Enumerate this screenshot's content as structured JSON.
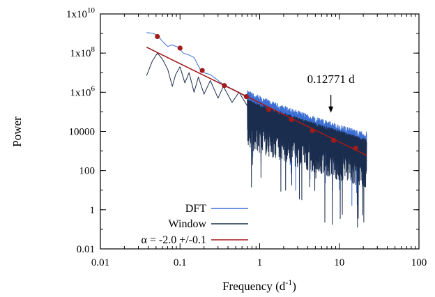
{
  "chart_data": {
    "type": "line",
    "xlabel": "Frequency (d",
    "xlabel_sup": "-1",
    "xlabel_close": ")",
    "ylabel": "Power",
    "x_scale": "log",
    "y_scale": "log",
    "xlim": [
      0.01,
      100
    ],
    "ylim": [
      0.01,
      10000000000
    ],
    "x_ticks": [
      {
        "value": 0.01,
        "label": "0.01"
      },
      {
        "value": 0.1,
        "label": "0.1"
      },
      {
        "value": 1,
        "label": "1"
      },
      {
        "value": 10,
        "label": "10"
      },
      {
        "value": 100,
        "label": "100"
      }
    ],
    "y_ticks": [
      {
        "value": 0.01,
        "label": "0.01"
      },
      {
        "value": 1,
        "label": "1"
      },
      {
        "value": 100,
        "label": "100"
      },
      {
        "value": 10000,
        "label": "10000"
      },
      {
        "value": 1000000,
        "label": "1x10",
        "exp": "6"
      },
      {
        "value": 100000000,
        "label": "1x10",
        "exp": "8"
      },
      {
        "value": 10000000000,
        "label": "1x10",
        "exp": "10"
      }
    ],
    "grid": false,
    "legend_position": "bottom-left",
    "series": [
      {
        "name": "DFT",
        "color": "#3c6fd4",
        "x_range": [
          0.038,
          22
        ],
        "smooth": [
          [
            0.038,
            1100000000.0
          ],
          [
            0.045,
            1050000000.0
          ],
          [
            0.052,
            800000000.0
          ],
          [
            0.062,
            350000000.0
          ],
          [
            0.07,
            220000000.0
          ],
          [
            0.08,
            260000000.0
          ],
          [
            0.095,
            200000000.0
          ],
          [
            0.11,
            100000000.0
          ],
          [
            0.13,
            80000000.0
          ],
          [
            0.15,
            60000000.0
          ],
          [
            0.18,
            14000000.0
          ],
          [
            0.2,
            10000000.0
          ],
          [
            0.24,
            8000000.0
          ],
          [
            0.3,
            4000000.0
          ],
          [
            0.35,
            2500000.0
          ],
          [
            0.45,
            1500000.0
          ],
          [
            0.55,
            1000000.0
          ],
          [
            0.7,
            500000.0
          ]
        ],
        "trend": [
          [
            0.7,
            400000.0
          ],
          [
            1.5,
            100000.0
          ],
          [
            5,
            18000.0
          ],
          [
            10,
            7000.0
          ],
          [
            20,
            3000.0
          ]
        ]
      },
      {
        "name": "Window",
        "color": "#1a2d4e",
        "x_range": [
          0.038,
          22
        ],
        "smooth": [
          [
            0.038,
            7000000.0
          ],
          [
            0.045,
            40000000.0
          ],
          [
            0.052,
            100000000.0
          ],
          [
            0.06,
            50000000.0
          ],
          [
            0.07,
            15000000.0
          ],
          [
            0.08,
            2000000.0
          ],
          [
            0.088,
            8000000.0
          ],
          [
            0.1,
            20000000.0
          ],
          [
            0.115,
            3000000.0
          ],
          [
            0.13,
            10000000.0
          ],
          [
            0.15,
            1000000.0
          ],
          [
            0.17,
            6000000.0
          ],
          [
            0.2,
            800000.0
          ],
          [
            0.24,
            4000000.0
          ],
          [
            0.3,
            500000.0
          ],
          [
            0.35,
            2000000.0
          ],
          [
            0.45,
            300000.0
          ],
          [
            0.55,
            1000000.0
          ],
          [
            0.7,
            200000.0
          ]
        ],
        "trend": [
          [
            0.7,
            200000.0
          ],
          [
            1.5,
            60000.0
          ],
          [
            5,
            12000.0
          ],
          [
            10,
            5000.0
          ],
          [
            20,
            2000.0
          ]
        ]
      },
      {
        "name": "α = -2.0 +/-0.1",
        "color": "#a31a1a",
        "slope": -2.0,
        "line": [
          [
            0.038,
            200000000.0
          ],
          [
            22,
            600
          ]
        ],
        "points": [
          [
            0.052,
            700000000.0
          ],
          [
            0.1,
            180000000.0
          ],
          [
            0.19,
            13000000.0
          ],
          [
            0.36,
            2200000.0
          ],
          [
            0.68,
            600000.0
          ],
          [
            1.3,
            130000.0
          ],
          [
            2.5,
            40000.0
          ],
          [
            4.6,
            11000.0
          ],
          [
            8.5,
            3500.0
          ],
          [
            16,
            1400.0
          ]
        ]
      }
    ],
    "annotations": [
      {
        "text": "0.12771 d",
        "x": 7.83,
        "y_tip": 90000.0
      }
    ]
  }
}
